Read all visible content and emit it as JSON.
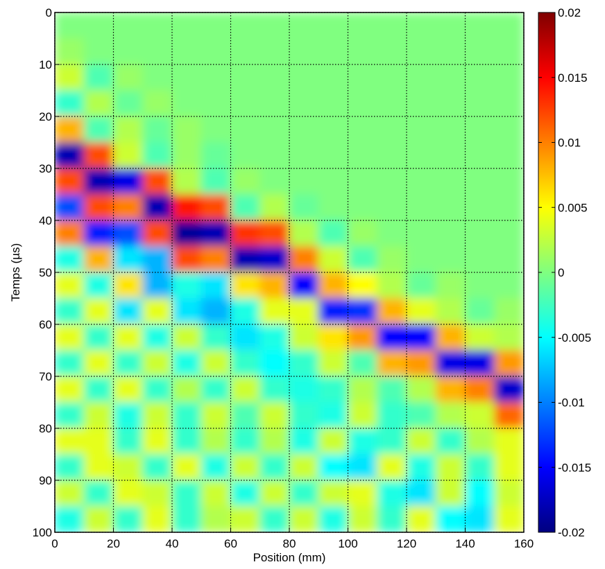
{
  "chart_data": {
    "type": "heatmap",
    "colormap": "jet",
    "grid": true,
    "yreverse": true,
    "xlabel": "Position (mm)",
    "ylabel": "Temps (µs)",
    "xlim": [
      0,
      160
    ],
    "xticks": [
      0,
      20,
      40,
      60,
      80,
      100,
      120,
      140,
      160
    ],
    "ylim": [
      0,
      100
    ],
    "yticks": [
      0,
      10,
      20,
      30,
      40,
      50,
      60,
      70,
      80,
      90,
      100
    ],
    "clim": [
      -0.02,
      0.02
    ],
    "cticks": [
      0.02,
      0.015,
      0.01,
      0.005,
      0,
      -0.005,
      -0.01,
      -0.015,
      -0.02
    ],
    "z": [
      [
        0,
        0,
        0,
        0,
        0,
        0,
        0,
        0,
        0,
        0,
        0,
        0,
        0,
        0,
        0,
        0
      ],
      [
        0.001,
        0,
        0,
        0,
        0,
        0,
        0,
        0,
        0,
        0,
        0,
        0,
        0,
        0,
        0,
        0
      ],
      [
        0.003,
        -0.002,
        0.001,
        0,
        0,
        0,
        0,
        0,
        0,
        0,
        0,
        0,
        0,
        0,
        0,
        0
      ],
      [
        -0.003,
        0.002,
        -0.001,
        0.001,
        0,
        0,
        0,
        0,
        0,
        0,
        0,
        0,
        0,
        0,
        0,
        0
      ],
      [
        0.008,
        -0.002,
        0.002,
        -0.001,
        0.001,
        0,
        0,
        0,
        0,
        0,
        0,
        0,
        0,
        0,
        0,
        0
      ],
      [
        -0.018,
        0.012,
        0.003,
        -0.002,
        0.001,
        -0.001,
        0,
        0,
        0,
        0,
        0,
        0,
        0,
        0,
        0,
        0
      ],
      [
        0.012,
        -0.018,
        -0.016,
        0.012,
        0.002,
        -0.002,
        0.001,
        0,
        0,
        0,
        0,
        0,
        0,
        0,
        0,
        0
      ],
      [
        -0.012,
        0.012,
        0.01,
        -0.018,
        0.014,
        0.012,
        -0.002,
        0.002,
        -0.001,
        0,
        0,
        0,
        0,
        0,
        0,
        0
      ],
      [
        0.01,
        -0.014,
        -0.012,
        0.012,
        -0.019,
        -0.018,
        0.013,
        0.012,
        0.002,
        -0.002,
        0.001,
        0,
        0,
        0,
        0,
        0
      ],
      [
        -0.004,
        0.008,
        -0.006,
        -0.008,
        0.012,
        0.01,
        -0.018,
        -0.017,
        0.01,
        0.003,
        -0.002,
        0.001,
        0,
        0,
        0,
        0
      ],
      [
        0.004,
        -0.004,
        0.006,
        -0.008,
        -0.004,
        -0.006,
        0.006,
        0.008,
        -0.015,
        0.008,
        0.005,
        0.002,
        -0.001,
        0.001,
        0,
        0
      ],
      [
        -0.003,
        0.004,
        -0.006,
        0.004,
        -0.006,
        -0.008,
        -0.004,
        0.004,
        0.004,
        -0.014,
        -0.013,
        0.008,
        0.004,
        0.002,
        -0.001,
        0.001
      ],
      [
        0.004,
        -0.003,
        0.004,
        -0.004,
        0.003,
        -0.003,
        -0.006,
        -0.004,
        0.003,
        0.006,
        0.009,
        -0.015,
        -0.015,
        0.008,
        0.003,
        0.002
      ],
      [
        -0.003,
        0.004,
        -0.003,
        0.003,
        -0.004,
        0.003,
        -0.003,
        -0.005,
        -0.003,
        0.003,
        -0.002,
        0.008,
        0.009,
        -0.016,
        -0.016,
        0.009
      ],
      [
        0.004,
        -0.003,
        0.004,
        -0.003,
        0.002,
        -0.003,
        0.003,
        -0.003,
        -0.004,
        -0.003,
        0.002,
        -0.002,
        0.002,
        0.008,
        0.01,
        -0.017
      ],
      [
        -0.003,
        0.003,
        -0.004,
        0.003,
        -0.003,
        0.003,
        -0.002,
        0.003,
        -0.003,
        -0.004,
        0.003,
        -0.003,
        -0.002,
        0.002,
        0.003,
        0.011
      ],
      [
        0.004,
        0.004,
        -0.003,
        0.004,
        -0.003,
        0.002,
        -0.003,
        0.002,
        -0.004,
        0.003,
        -0.004,
        -0.003,
        0.003,
        -0.003,
        0.002,
        0.004
      ],
      [
        -0.003,
        0.004,
        0.003,
        -0.003,
        0.004,
        -0.004,
        0.003,
        -0.003,
        0.003,
        -0.005,
        -0.006,
        0.004,
        -0.004,
        0.003,
        -0.003,
        0.004
      ],
      [
        0.003,
        -0.003,
        0.004,
        0.003,
        -0.003,
        0.003,
        -0.004,
        0.003,
        -0.003,
        0.003,
        0.004,
        -0.004,
        -0.006,
        0.003,
        -0.005,
        0.003
      ],
      [
        -0.004,
        0.003,
        -0.003,
        0.004,
        -0.003,
        0.002,
        0.003,
        -0.003,
        0.003,
        -0.004,
        0.003,
        -0.003,
        0.004,
        -0.005,
        -0.006,
        0.004
      ]
    ]
  }
}
